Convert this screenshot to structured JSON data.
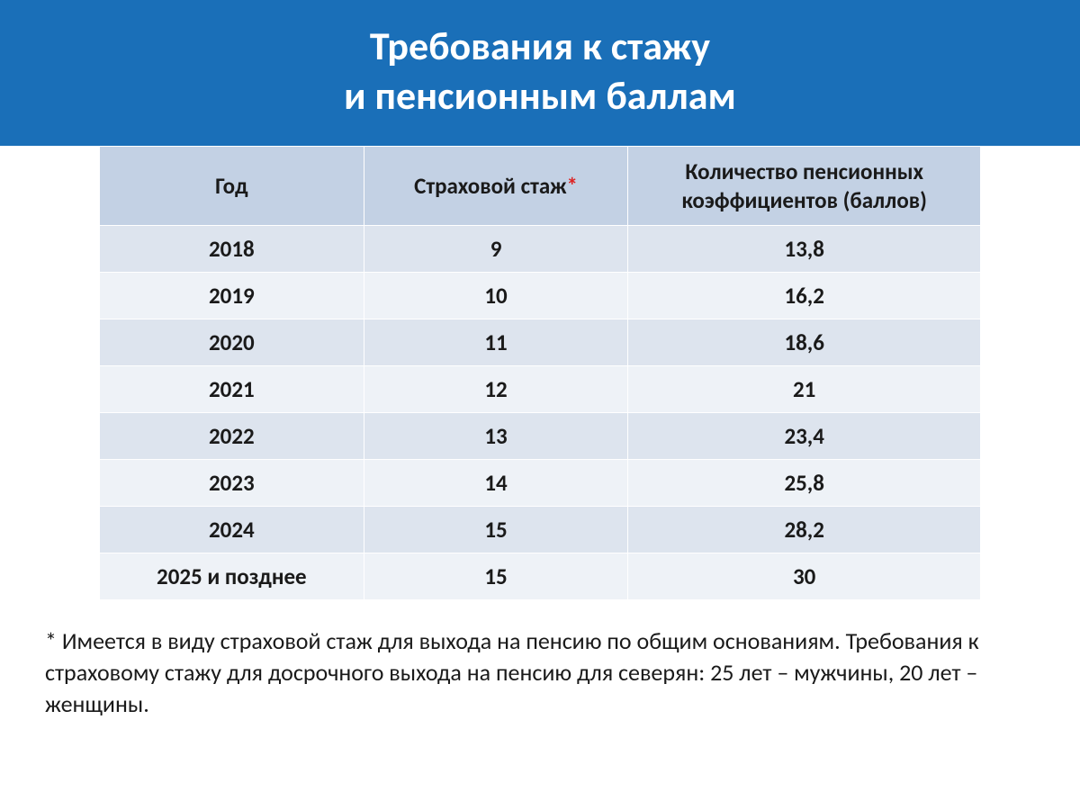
{
  "header": {
    "line1": "Требования к стажу",
    "line2": "и пенсионным баллам"
  },
  "table": {
    "columns": {
      "year": "Год",
      "stazh_prefix": "Страховой стаж",
      "stazh_asterisk": "*",
      "points": "Количество пенсионных коэффициентов (баллов)"
    },
    "header_bg": "#c3d1e4",
    "row_bg_odd": "#dde4ee",
    "row_bg_even": "#eef2f7",
    "border_color": "#ffffff",
    "text_color": "#1a1a1a",
    "asterisk_color": "#d22222",
    "font_size_header": 25,
    "font_size_cell": 25,
    "rows": [
      {
        "year": "2018",
        "stazh": "9",
        "points": "13,8"
      },
      {
        "year": "2019",
        "stazh": "10",
        "points": "16,2"
      },
      {
        "year": "2020",
        "stazh": "11",
        "points": "18,6"
      },
      {
        "year": "2021",
        "stazh": "12",
        "points": "21"
      },
      {
        "year": "2022",
        "stazh": "13",
        "points": "23,4"
      },
      {
        "year": "2023",
        "stazh": "14",
        "points": "25,8"
      },
      {
        "year": "2024",
        "stazh": "15",
        "points": "28,2"
      },
      {
        "year": "2025 и позднее",
        "stazh": "15",
        "points": "30"
      }
    ]
  },
  "footnote": {
    "text": "* Имеется в виду страховой стаж для выхода на пенсию по общим основаниям. Требования к страховому стажу для досрочного выхода на пенсию для северян: 25 лет – мужчины, 20 лет – женщины."
  },
  "colors": {
    "header_band": "#1a6fb8",
    "header_text": "#ffffff",
    "page_bg": "#ffffff"
  }
}
